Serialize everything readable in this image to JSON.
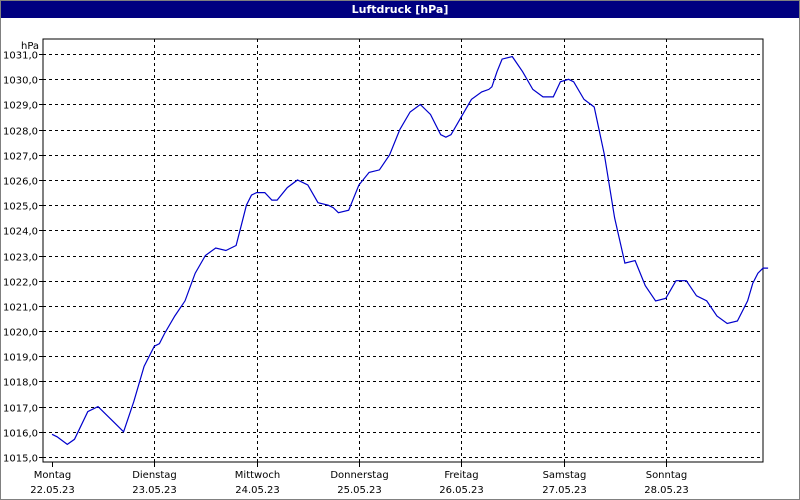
{
  "window": {
    "title": "Luftdruck [hPa]"
  },
  "chart_data": {
    "type": "line",
    "title": "Luftdruck [hPa]",
    "ylabel": "hPa",
    "xlabel": "",
    "ylim": [
      1014.8,
      1031.6
    ],
    "xlim": [
      0,
      7
    ],
    "grid": true,
    "yticks": [
      "1015,0",
      "1016,0",
      "1017,0",
      "1018,0",
      "1019,0",
      "1020,0",
      "1021,0",
      "1022,0",
      "1023,0",
      "1024,0",
      "1025,0",
      "1026,0",
      "1027,0",
      "1028,0",
      "1029,0",
      "1030,0",
      "1031,0"
    ],
    "ytick_values": [
      1015,
      1016,
      1017,
      1018,
      1019,
      1020,
      1021,
      1022,
      1023,
      1024,
      1025,
      1026,
      1027,
      1028,
      1029,
      1030,
      1031
    ],
    "x_days": [
      {
        "day": "Montag",
        "date": "22.05.23"
      },
      {
        "day": "Dienstag",
        "date": "23.05.23"
      },
      {
        "day": "Mittwoch",
        "date": "24.05.23"
      },
      {
        "day": "Donnerstag",
        "date": "25.05.23"
      },
      {
        "day": "Freitag",
        "date": "26.05.23"
      },
      {
        "day": "Samstag",
        "date": "27.05.23"
      },
      {
        "day": "Sonntag",
        "date": "28.05.23"
      }
    ],
    "series": [
      {
        "color": "#0000cc",
        "x": [
          0,
          0.05,
          0.15,
          0.22,
          0.35,
          0.45,
          0.6,
          0.7,
          0.8,
          0.9,
          1.0,
          1.05,
          1.1,
          1.2,
          1.3,
          1.4,
          1.5,
          1.6,
          1.7,
          1.8,
          1.85,
          1.9,
          1.95,
          2.0,
          2.08,
          2.15,
          2.2,
          2.3,
          2.4,
          2.5,
          2.6,
          2.7,
          2.75,
          2.8,
          2.9,
          3.0,
          3.1,
          3.2,
          3.3,
          3.4,
          3.5,
          3.6,
          3.7,
          3.8,
          3.85,
          3.9,
          4.0,
          4.1,
          4.2,
          4.27,
          4.3,
          4.35,
          4.4,
          4.5,
          4.6,
          4.7,
          4.8,
          4.9,
          4.97,
          5.05,
          5.1,
          5.2,
          5.3,
          5.4,
          5.5,
          5.6,
          5.7,
          5.8,
          5.9,
          6.0,
          6.1,
          6.2,
          6.3,
          6.4,
          6.5,
          6.6,
          6.7,
          6.8,
          6.85,
          6.9,
          6.95,
          7.0
        ],
        "y": [
          1015.9,
          1015.8,
          1015.5,
          1015.7,
          1016.8,
          1017.0,
          1016.4,
          1016.0,
          1017.2,
          1018.6,
          1019.4,
          1019.5,
          1019.9,
          1020.6,
          1021.2,
          1022.3,
          1023.0,
          1023.3,
          1023.2,
          1023.4,
          1024.2,
          1025.0,
          1025.4,
          1025.5,
          1025.5,
          1025.2,
          1025.2,
          1025.7,
          1026.0,
          1025.8,
          1025.1,
          1025.0,
          1024.9,
          1024.7,
          1024.8,
          1025.8,
          1026.3,
          1026.4,
          1027.0,
          1028.0,
          1028.7,
          1029.0,
          1028.6,
          1027.8,
          1027.7,
          1027.8,
          1028.5,
          1029.2,
          1029.5,
          1029.6,
          1029.7,
          1030.3,
          1030.8,
          1030.9,
          1030.3,
          1029.6,
          1029.3,
          1029.3,
          1029.9,
          1030.0,
          1029.9,
          1029.2,
          1028.9,
          1027.0,
          1024.5,
          1022.7,
          1022.8,
          1021.8,
          1021.2,
          1021.3,
          1022.0,
          1022.0,
          1021.4,
          1021.2,
          1020.6,
          1020.3,
          1020.4,
          1021.2,
          1021.9,
          1022.3,
          1022.5,
          1022.5
        ]
      }
    ]
  }
}
